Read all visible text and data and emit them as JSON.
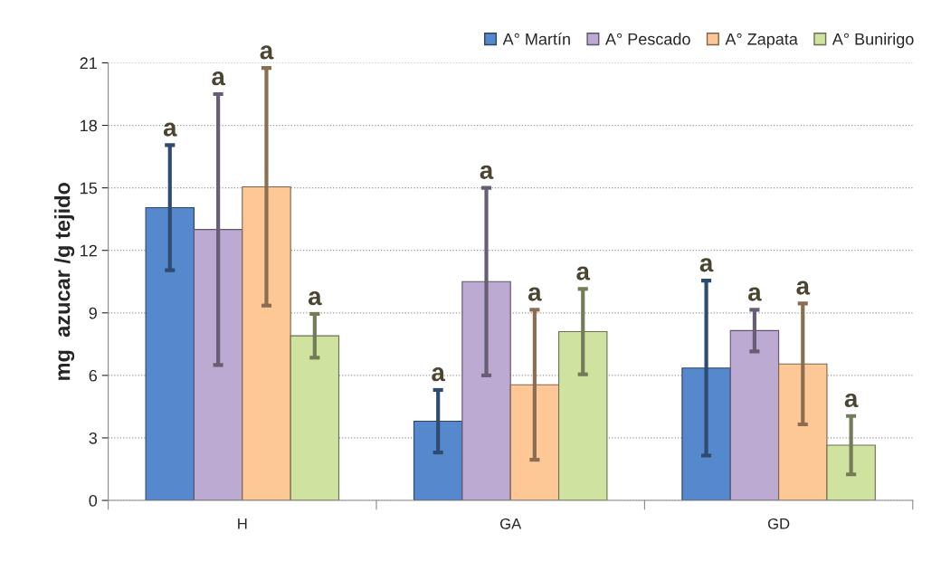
{
  "chart_data": {
    "type": "bar",
    "ylabel": "mg  azucar /g tejido",
    "categories": [
      "H",
      "GA",
      "GD"
    ],
    "series": [
      {
        "name": "A° Martín",
        "color": "#5588cc",
        "values": [
          14.05,
          3.8,
          6.35
        ],
        "errors": [
          3.0,
          1.5,
          4.2
        ]
      },
      {
        "name": "A° Pescado",
        "color": "#bcaad2",
        "values": [
          13.0,
          10.5,
          8.15
        ],
        "errors": [
          6.5,
          4.5,
          1.0
        ]
      },
      {
        "name": "A° Zapata",
        "color": "#fdc896",
        "values": [
          15.05,
          5.55,
          6.55
        ],
        "errors": [
          5.7,
          3.6,
          2.9
        ]
      },
      {
        "name": "A° Bunirigo",
        "color": "#cfe2a0",
        "values": [
          7.9,
          8.1,
          2.65
        ],
        "errors": [
          1.05,
          2.05,
          1.4
        ]
      }
    ],
    "annotations": [
      "a",
      "a",
      "a",
      "a",
      "a",
      "a",
      "a",
      "a",
      "a",
      "a",
      "a",
      "a"
    ],
    "ylim": [
      0,
      21
    ],
    "yticks": [
      0,
      3,
      6,
      9,
      12,
      15,
      18,
      21
    ],
    "grid": "y",
    "legend": "top right"
  }
}
